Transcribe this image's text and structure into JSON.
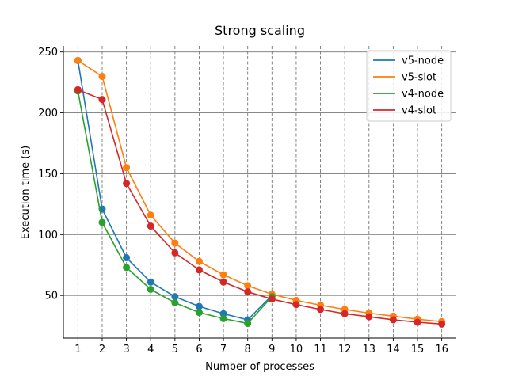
{
  "chart_data": {
    "type": "line",
    "title": "Strong scaling",
    "xlabel": "Number of processes",
    "ylabel": "Execution time (s)",
    "x": [
      1,
      2,
      3,
      4,
      5,
      6,
      7,
      8,
      9,
      10,
      11,
      12,
      13,
      14,
      15,
      16
    ],
    "xlim": [
      0.4,
      16.6
    ],
    "ylim": [
      15,
      255
    ],
    "yticks": [
      50,
      100,
      150,
      200,
      250
    ],
    "grid": {
      "x": "dashed",
      "y": "solid"
    },
    "legend_position": "top-right",
    "series": [
      {
        "name": "v5-node",
        "color": "#1f77b4",
        "points": [
          [
            1,
            243
          ],
          [
            2,
            121
          ],
          [
            3,
            81
          ],
          [
            4,
            61
          ],
          [
            5,
            49
          ],
          [
            6,
            41
          ],
          [
            7,
            35
          ],
          [
            8,
            30
          ],
          [
            9,
            50
          ]
        ]
      },
      {
        "name": "v5-slot",
        "color": "#ff7f0e",
        "points": [
          [
            1,
            243
          ],
          [
            2,
            230
          ],
          [
            3,
            155
          ],
          [
            4,
            116
          ],
          [
            5,
            93
          ],
          [
            6,
            78
          ],
          [
            7,
            67
          ],
          [
            8,
            58
          ],
          [
            9,
            51
          ],
          [
            10,
            46
          ],
          [
            11,
            42
          ],
          [
            12,
            38.5
          ],
          [
            13,
            35.5
          ],
          [
            14,
            33
          ],
          [
            15,
            30.5
          ],
          [
            16,
            28.5
          ]
        ]
      },
      {
        "name": "v4-node",
        "color": "#2ca02c",
        "points": [
          [
            1,
            218
          ],
          [
            2,
            110
          ],
          [
            3,
            73
          ],
          [
            4,
            55
          ],
          [
            5,
            44
          ],
          [
            6,
            36
          ],
          [
            7,
            31
          ],
          [
            8,
            27
          ],
          [
            9,
            49
          ]
        ]
      },
      {
        "name": "v4-slot",
        "color": "#d62728",
        "points": [
          [
            1,
            219
          ],
          [
            2,
            211
          ],
          [
            3,
            142
          ],
          [
            4,
            107
          ],
          [
            5,
            85
          ],
          [
            6,
            71
          ],
          [
            7,
            61
          ],
          [
            8,
            53
          ],
          [
            9,
            47
          ],
          [
            10,
            42.5
          ],
          [
            11,
            38.5
          ],
          [
            12,
            35
          ],
          [
            13,
            32.5
          ],
          [
            14,
            30
          ],
          [
            15,
            28
          ],
          [
            16,
            26.5
          ]
        ]
      }
    ]
  }
}
